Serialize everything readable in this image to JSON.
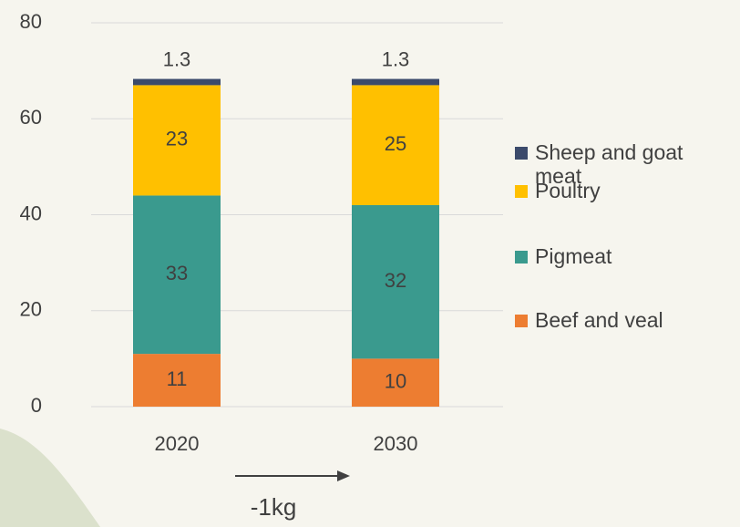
{
  "chart_data": {
    "type": "bar",
    "stacked": true,
    "categories": [
      "2020",
      "2030"
    ],
    "series": [
      {
        "name": "Beef and veal",
        "color": "#ed7d31",
        "values": [
          11,
          10
        ]
      },
      {
        "name": "Pigmeat",
        "color": "#3a9a8e",
        "values": [
          33,
          32
        ]
      },
      {
        "name": "Poultry",
        "color": "#ffc000",
        "values": [
          23,
          25
        ]
      },
      {
        "name": "Sheep and goat meat",
        "color": "#3b4a6b",
        "values": [
          1.3,
          1.3
        ]
      }
    ],
    "ylim": [
      0,
      80
    ],
    "yticks": [
      0,
      20,
      40,
      60,
      80
    ],
    "grid": true,
    "annotation": "-1kg",
    "legend_position": "right"
  }
}
